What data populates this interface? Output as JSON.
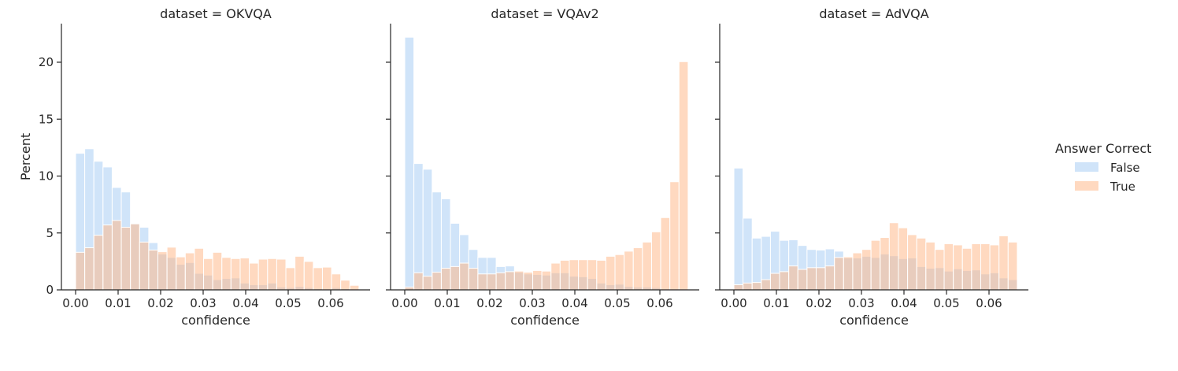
{
  "chart_data": {
    "type": "bar",
    "subtype": "overlapping-histogram",
    "ylabel": "Percent",
    "xlabel": "confidence",
    "ylim": [
      0,
      23
    ],
    "xlim": [
      -0.0033,
      0.0697
    ],
    "yticks": [
      0,
      5,
      10,
      15,
      20
    ],
    "xticks": [
      "0.00",
      "0.01",
      "0.02",
      "0.03",
      "0.04",
      "0.05",
      "0.06"
    ],
    "bin_start": 0.0,
    "bin_width": 0.00215,
    "grid": false,
    "legend": {
      "title": "Answer Correct",
      "placement": "right",
      "entries": [
        {
          "label": "False",
          "color": "#a1c9f4"
        },
        {
          "label": "True",
          "color": "#ffb482"
        }
      ]
    },
    "panels": [
      {
        "title": "dataset = OKVQA",
        "series": [
          {
            "name": "False",
            "values": [
              12.0,
              12.4,
              11.3,
              10.8,
              9.0,
              8.6,
              5.85,
              5.5,
              4.15,
              3.15,
              2.85,
              2.25,
              2.4,
              1.45,
              1.3,
              0.9,
              1.0,
              1.05,
              0.6,
              0.45,
              0.45,
              0.6,
              0.25,
              0.2,
              0.3,
              0.2,
              0.1,
              0.05,
              0.2,
              0.1,
              0.0
            ]
          },
          {
            "name": "True",
            "values": [
              3.3,
              3.7,
              4.8,
              5.7,
              6.1,
              5.5,
              5.8,
              4.2,
              3.5,
              3.35,
              3.75,
              2.9,
              3.25,
              3.65,
              2.75,
              3.3,
              2.85,
              2.75,
              2.8,
              2.35,
              2.7,
              2.75,
              2.7,
              1.95,
              2.95,
              2.5,
              1.95,
              2.0,
              1.4,
              0.85,
              0.4
            ]
          }
        ]
      },
      {
        "title": "dataset = VQAv2",
        "series": [
          {
            "name": "False",
            "values": [
              22.2,
              11.1,
              10.6,
              8.6,
              8.0,
              5.85,
              4.85,
              3.55,
              2.85,
              2.85,
              2.05,
              2.1,
              1.55,
              1.4,
              1.35,
              1.3,
              1.5,
              1.5,
              1.2,
              1.15,
              1.0,
              0.6,
              0.45,
              0.5,
              0.3,
              0.25,
              0.25,
              0.2,
              0.0,
              0.0,
              0.0
            ]
          },
          {
            "name": "True",
            "values": [
              0.25,
              1.5,
              1.2,
              1.55,
              1.9,
              2.05,
              2.35,
              1.9,
              1.4,
              1.4,
              1.5,
              1.6,
              1.65,
              1.55,
              1.7,
              1.65,
              2.35,
              2.6,
              2.65,
              2.65,
              2.65,
              2.6,
              2.95,
              3.1,
              3.4,
              3.7,
              4.2,
              5.1,
              6.35,
              9.5,
              20.05
            ]
          }
        ]
      },
      {
        "title": "dataset = AdVQA",
        "series": [
          {
            "name": "False",
            "values": [
              10.7,
              6.3,
              4.55,
              4.7,
              5.15,
              4.35,
              4.4,
              3.9,
              3.55,
              3.5,
              3.6,
              3.4,
              2.8,
              2.8,
              2.95,
              2.85,
              3.15,
              3.0,
              2.75,
              2.8,
              2.05,
              1.9,
              1.95,
              1.65,
              1.85,
              1.7,
              1.75,
              1.4,
              1.5,
              1.05,
              0.9
            ]
          },
          {
            "name": "True",
            "values": [
              0.45,
              0.6,
              0.65,
              0.9,
              1.45,
              1.6,
              2.1,
              1.8,
              1.95,
              1.95,
              2.1,
              2.85,
              2.9,
              3.25,
              3.55,
              4.35,
              4.6,
              5.9,
              5.45,
              4.85,
              4.55,
              4.2,
              3.55,
              4.05,
              3.95,
              3.65,
              4.05,
              4.05,
              3.95,
              4.75,
              4.2
            ]
          }
        ]
      }
    ]
  }
}
